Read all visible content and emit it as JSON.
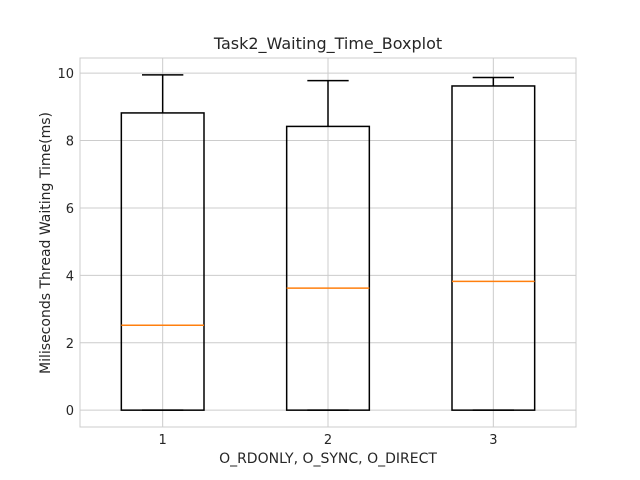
{
  "chart_data": {
    "type": "boxplot",
    "title": "Task2_Waiting_Time_Boxplot",
    "xlabel": "O_RDONLY, O_SYNC, O_DIRECT",
    "ylabel": "Miliseconds Thread Waiting Time(ms)",
    "xlim": [
      0.5,
      3.5
    ],
    "ylim": [
      -0.5,
      10.45
    ],
    "grid": true,
    "y_ticks": [
      0,
      2,
      4,
      6,
      8,
      10
    ],
    "categories": [
      "1",
      "2",
      "3"
    ],
    "boxes": [
      {
        "label": "1",
        "whisker_low": 0.0,
        "q1": 0.0,
        "median": 2.52,
        "q3": 8.82,
        "whisker_high": 9.95
      },
      {
        "label": "2",
        "whisker_low": 0.0,
        "q1": 0.0,
        "median": 3.62,
        "q3": 8.42,
        "whisker_high": 9.78
      },
      {
        "label": "3",
        "whisker_low": 0.0,
        "q1": 0.0,
        "median": 3.82,
        "q3": 9.62,
        "whisker_high": 9.87
      }
    ],
    "colors": {
      "box": "#000000",
      "median": "#ff7f0e",
      "grid": "#cccccc",
      "axes_edge": "#cccccc"
    }
  }
}
